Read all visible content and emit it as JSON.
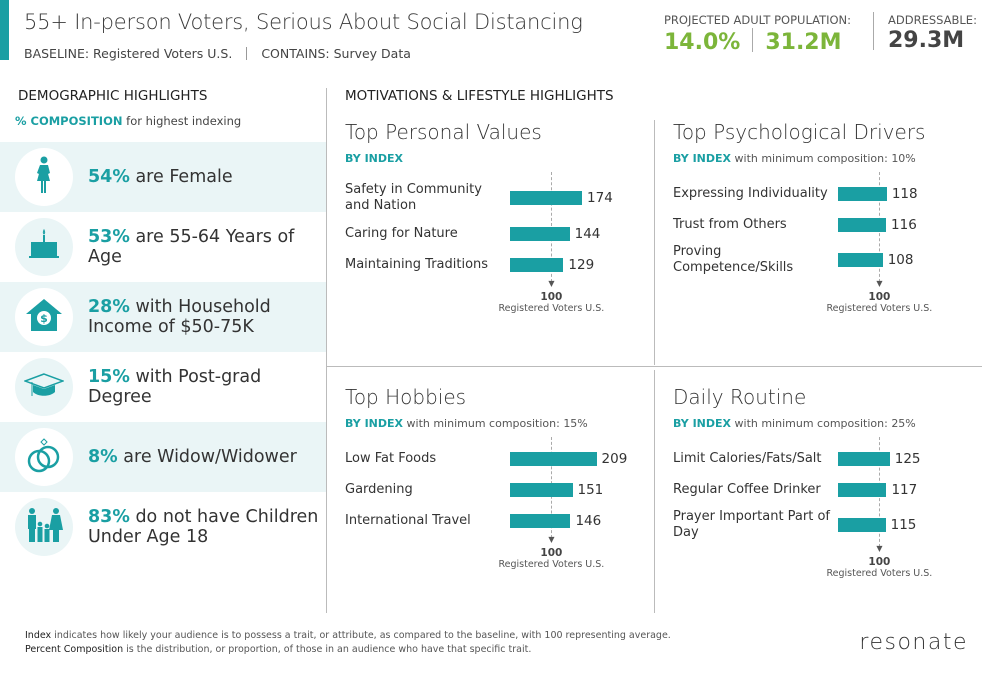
{
  "header": {
    "title": "55+ In-person Voters, Serious About Social Distancing",
    "baseline": "BASELINE: Registered Voters U.S.",
    "contains": "CONTAINS: Survey Data",
    "projected_label": "PROJECTED ADULT POPULATION:",
    "projected_pct": "14.0%",
    "projected_count": "31.2M",
    "addressable_label": "ADDRESSABLE:",
    "addressable_count": "29.3M"
  },
  "colors": {
    "accent": "#1a9fa3",
    "green": "#7cb53a",
    "shade": "#eaf5f6"
  },
  "demographics": {
    "heading": "DEMOGRAPHIC HIGHLIGHTS",
    "comp_bold": "% COMPOSITION",
    "comp_rest": " for highest indexing",
    "items": [
      {
        "icon": "female-icon",
        "pct": "54%",
        "text": " are Female"
      },
      {
        "icon": "birthday-cake-icon",
        "pct": "53%",
        "text": " are 55-64 Years of Age"
      },
      {
        "icon": "house-dollar-icon",
        "pct": "28%",
        "text": " with Household Income of $50-75K"
      },
      {
        "icon": "graduation-cap-icon",
        "pct": "15%",
        "text": " with Post-grad Degree"
      },
      {
        "icon": "wedding-rings-icon",
        "pct": "8%",
        "text": " are Widow/Widower"
      },
      {
        "icon": "family-icon",
        "pct": "83%",
        "text": " do not have Children Under Age 18"
      }
    ]
  },
  "motivations": {
    "heading": "MOTIVATIONS & LIFESTYLE HIGHLIGHTS"
  },
  "chart_data": [
    {
      "type": "bar",
      "title": "Top Personal Values",
      "by": "BY INDEX",
      "min_label": "",
      "min_value": "",
      "reference": "100",
      "reference_label": "Registered Voters U.S.",
      "categories": [
        "Safety in Community and Nation",
        "Caring for Nature",
        "Maintaining Traditions"
      ],
      "values": [
        174,
        144,
        129
      ]
    },
    {
      "type": "bar",
      "title": "Top Psychological Drivers",
      "by": "BY INDEX",
      "min_label": " with minimum composition: ",
      "min_value": "10%",
      "reference": "100",
      "reference_label": "Registered Voters U.S.",
      "categories": [
        "Expressing Individuality",
        "Trust from Others",
        "Proving Competence/Skills"
      ],
      "values": [
        118,
        116,
        108
      ]
    },
    {
      "type": "bar",
      "title": "Top Hobbies",
      "by": "BY INDEX",
      "min_label": " with minimum composition: ",
      "min_value": "15%",
      "reference": "100",
      "reference_label": "Registered Voters U.S.",
      "categories": [
        "Low Fat Foods",
        "Gardening",
        "International Travel"
      ],
      "values": [
        209,
        151,
        146
      ]
    },
    {
      "type": "bar",
      "title": "Daily Routine",
      "by": "BY INDEX",
      "min_label": " with minimum composition: ",
      "min_value": "25%",
      "reference": "100",
      "reference_label": "Registered Voters U.S.",
      "categories": [
        "Limit Calories/Fats/Salt",
        "Regular Coffee Drinker",
        "Prayer Important Part of Day"
      ],
      "values": [
        125,
        117,
        115
      ]
    }
  ],
  "footer": {
    "index_term": "Index",
    "index_text": " indicates how likely your audience is to possess a trait, or attribute, as compared to the baseline, with 100 representing average.",
    "comp_term": "Percent Composition",
    "comp_text": " is the distribution, or proportion, of those in an audience who have that specific trait.",
    "logo": "resonate"
  }
}
